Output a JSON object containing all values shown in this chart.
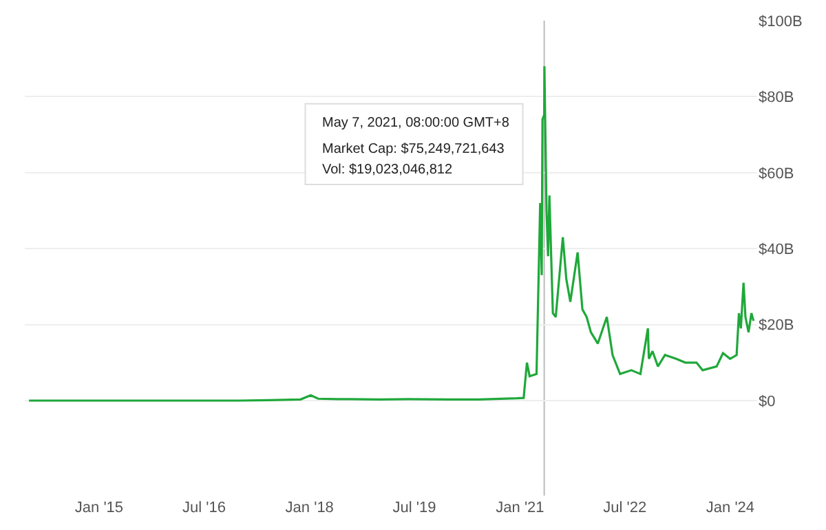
{
  "chart_data": {
    "type": "line",
    "x": [
      "2014-01-01",
      "2014-06-01",
      "2015-01-01",
      "2016-01-01",
      "2017-01-01",
      "2017-06-01",
      "2017-11-15",
      "2018-01-07",
      "2018-02-15",
      "2018-06-01",
      "2019-01-01",
      "2019-06-01",
      "2020-01-01",
      "2020-06-01",
      "2020-12-15",
      "2021-01-20",
      "2021-02-06",
      "2021-02-20",
      "2021-03-28",
      "2021-04-16",
      "2021-04-24",
      "2021-04-28",
      "2021-05-07",
      "2021-05-08",
      "2021-05-19",
      "2021-05-27",
      "2021-06-03",
      "2021-06-21",
      "2021-07-06",
      "2021-08-12",
      "2021-08-30",
      "2021-09-20",
      "2021-10-28",
      "2021-11-22",
      "2021-12-14",
      "2022-01-05",
      "2022-02-10",
      "2022-03-29",
      "2022-04-28",
      "2022-06-06",
      "2022-08-04",
      "2022-09-20",
      "2022-10-29",
      "2022-11-03",
      "2022-11-22",
      "2022-12-20",
      "2023-01-26",
      "2023-03-25",
      "2023-05-12",
      "2023-07-09",
      "2023-08-10",
      "2023-10-22",
      "2023-11-24",
      "2023-12-31",
      "2024-02-03",
      "2024-02-15",
      "2024-02-25",
      "2024-03-10",
      "2024-03-20",
      "2024-04-05",
      "2024-04-20",
      "2024-05-01"
    ],
    "series": [
      {
        "color": "#1fa83a",
        "values": [
          0,
          0,
          0,
          0,
          0,
          0.1,
          0.3,
          1.4,
          0.5,
          0.4,
          0.3,
          0.4,
          0.3,
          0.3,
          0.6,
          0.7,
          10,
          6.4,
          7,
          52,
          33,
          74,
          75.2,
          88,
          50,
          38,
          54,
          23,
          22,
          43,
          32,
          26,
          39,
          24,
          22,
          18,
          15,
          22,
          12,
          7,
          8,
          7,
          19,
          11,
          13,
          9,
          12,
          11,
          10,
          10,
          8,
          9,
          12.5,
          11,
          12,
          23,
          19,
          31,
          22,
          18,
          23,
          21
        ]
      }
    ],
    "xlim": [
      "2013-12-10",
      "2024-05-20"
    ],
    "xticks": [
      {
        "value": "2015-01-01",
        "label": "Jan '15"
      },
      {
        "value": "2016-07-01",
        "label": "Jul '16"
      },
      {
        "value": "2018-01-01",
        "label": "Jan '18"
      },
      {
        "value": "2019-07-01",
        "label": "Jul '19"
      },
      {
        "value": "2021-01-01",
        "label": "Jan '21"
      },
      {
        "value": "2022-07-01",
        "label": "Jul '22"
      },
      {
        "value": "2024-01-01",
        "label": "Jan '24"
      }
    ],
    "ylim": [
      -25,
      100
    ],
    "yticks": [
      {
        "value": 0,
        "label": "$0"
      },
      {
        "value": 20,
        "label": "$20B"
      },
      {
        "value": 40,
        "label": "$40B"
      },
      {
        "value": 60,
        "label": "$60B"
      },
      {
        "value": 80,
        "label": "$80B"
      },
      {
        "value": 100,
        "label": "$100B"
      }
    ],
    "grid": "y",
    "marker": "none",
    "ref_lines": [
      {
        "axis": "x",
        "value": "2021-05-07",
        "color": "#bbbbbb"
      }
    ],
    "annotations": [
      "May 7, 2021, 08:00:00 GMT+8",
      "Market Cap: $75,249,721,643",
      "Vol: $19,023,046,812"
    ]
  }
}
